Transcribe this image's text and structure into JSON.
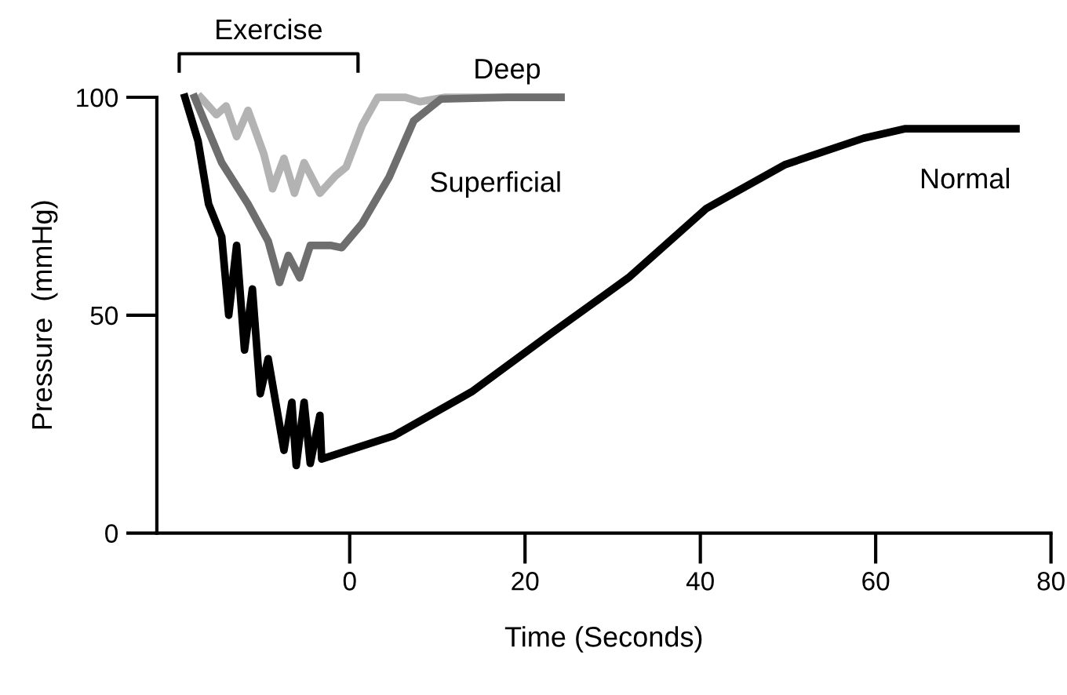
{
  "chart_data": {
    "type": "line",
    "xlabel": "Time (Seconds)",
    "ylabel": "Pressure  (mmHg)",
    "xlim": [
      -22,
      80
    ],
    "xticks": [
      0,
      20,
      40,
      60,
      80
    ],
    "ylim": [
      0,
      100
    ],
    "yticks": [
      0,
      50,
      100
    ],
    "grid": false,
    "legend": false,
    "marker": "none",
    "line_style": "solid",
    "annotations": [
      "Exercise"
    ],
    "series": [
      {
        "name": "Deep",
        "color": "#b3b3b3",
        "x": [
          -17,
          -15.2,
          -14.1,
          -12.9,
          -11.6,
          -9.8,
          -8.8,
          -7.5,
          -6.3,
          -5.2,
          -3.4,
          -1.6,
          -0.4,
          1.4,
          3.2,
          6.3,
          8,
          10.9,
          24.1
        ],
        "values": [
          100,
          96,
          98,
          91,
          97,
          87,
          79,
          86,
          78,
          85,
          78,
          82,
          84,
          93.5,
          100,
          100,
          99,
          100,
          100
        ]
      },
      {
        "name": "Superficial",
        "color": "#6e6e6e",
        "x": [
          -17.7,
          -14.6,
          -11.6,
          -9.3,
          -8,
          -7,
          -5.7,
          -4.5,
          -2.1,
          -0.9,
          1.4,
          4.5,
          7.3,
          10.4,
          18,
          24.1
        ],
        "values": [
          100,
          85,
          75.5,
          67,
          57.5,
          63.7,
          58.6,
          66,
          66,
          65.5,
          71,
          81.7,
          94.6,
          99.6,
          100,
          100
        ]
      },
      {
        "name": "Normal",
        "color": "#000000",
        "x": [
          -18.8,
          -17.3,
          -16.1,
          -14.6,
          -13.8,
          -12.9,
          -12,
          -11.1,
          -10.2,
          -9.3,
          -7.5,
          -6.6,
          -6.1,
          -5.2,
          -4.5,
          -3.4,
          -3.2,
          5,
          13.9,
          22.9,
          31.8,
          40.7,
          49.6,
          58.6,
          63.4,
          76
        ],
        "values": [
          100,
          90,
          75.5,
          68,
          50,
          66,
          42,
          56,
          32,
          40,
          19,
          30,
          15.5,
          30,
          16,
          27,
          17,
          22.3,
          32.4,
          45.7,
          58.6,
          74.5,
          84.5,
          90.6,
          92.8,
          92.8
        ]
      }
    ]
  }
}
